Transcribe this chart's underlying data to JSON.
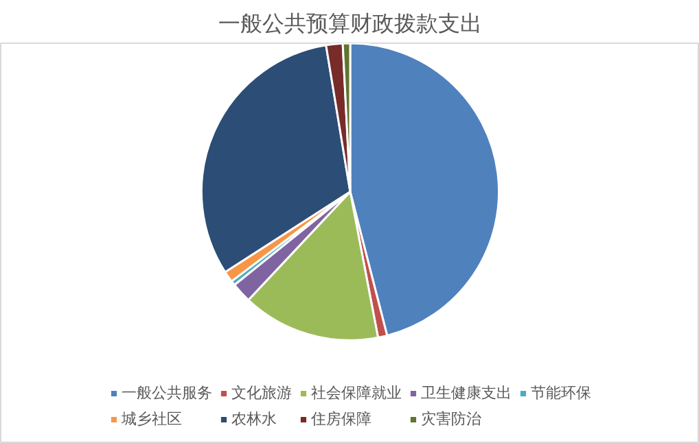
{
  "chart_data": {
    "type": "pie",
    "title": "一般公共预算财政拨款支出",
    "categories": [
      "一般公共服务",
      "文化旅游",
      "社会保障就业",
      "卫生健康支出",
      "节能环保",
      "城乡社区",
      "农林水",
      "住房保障",
      "灾害防治"
    ],
    "values": [
      46,
      1,
      15,
      2.2,
      0.5,
      1.2,
      31.5,
      1.8,
      0.8
    ],
    "colors": [
      "#4f81bd",
      "#c0504d",
      "#9bbb59",
      "#8064a2",
      "#4bacc6",
      "#f79646",
      "#2c4d75",
      "#772c2a",
      "#5f7530"
    ],
    "legend": "bottom"
  }
}
